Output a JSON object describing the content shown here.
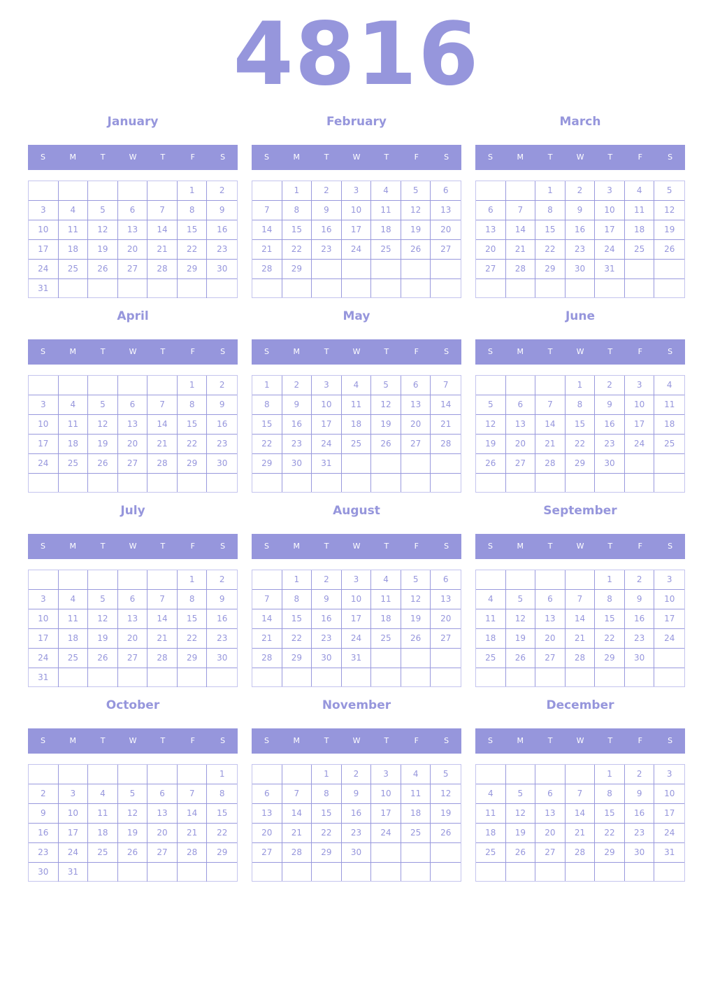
{
  "year": "4816",
  "weekdays": [
    "S",
    "M",
    "T",
    "W",
    "T",
    "F",
    "S"
  ],
  "colors": {
    "accent": "#9696dc",
    "header_text": "#ffffff"
  },
  "months": [
    {
      "name": "January",
      "start_weekday": 5,
      "days": 31
    },
    {
      "name": "February",
      "start_weekday": 1,
      "days": 29
    },
    {
      "name": "March",
      "start_weekday": 2,
      "days": 31
    },
    {
      "name": "April",
      "start_weekday": 5,
      "days": 30
    },
    {
      "name": "May",
      "start_weekday": 0,
      "days": 31
    },
    {
      "name": "June",
      "start_weekday": 3,
      "days": 30
    },
    {
      "name": "July",
      "start_weekday": 5,
      "days": 31
    },
    {
      "name": "August",
      "start_weekday": 1,
      "days": 31
    },
    {
      "name": "September",
      "start_weekday": 4,
      "days": 30
    },
    {
      "name": "October",
      "start_weekday": 6,
      "days": 31
    },
    {
      "name": "November",
      "start_weekday": 2,
      "days": 30
    },
    {
      "name": "December",
      "start_weekday": 4,
      "days": 31
    }
  ]
}
